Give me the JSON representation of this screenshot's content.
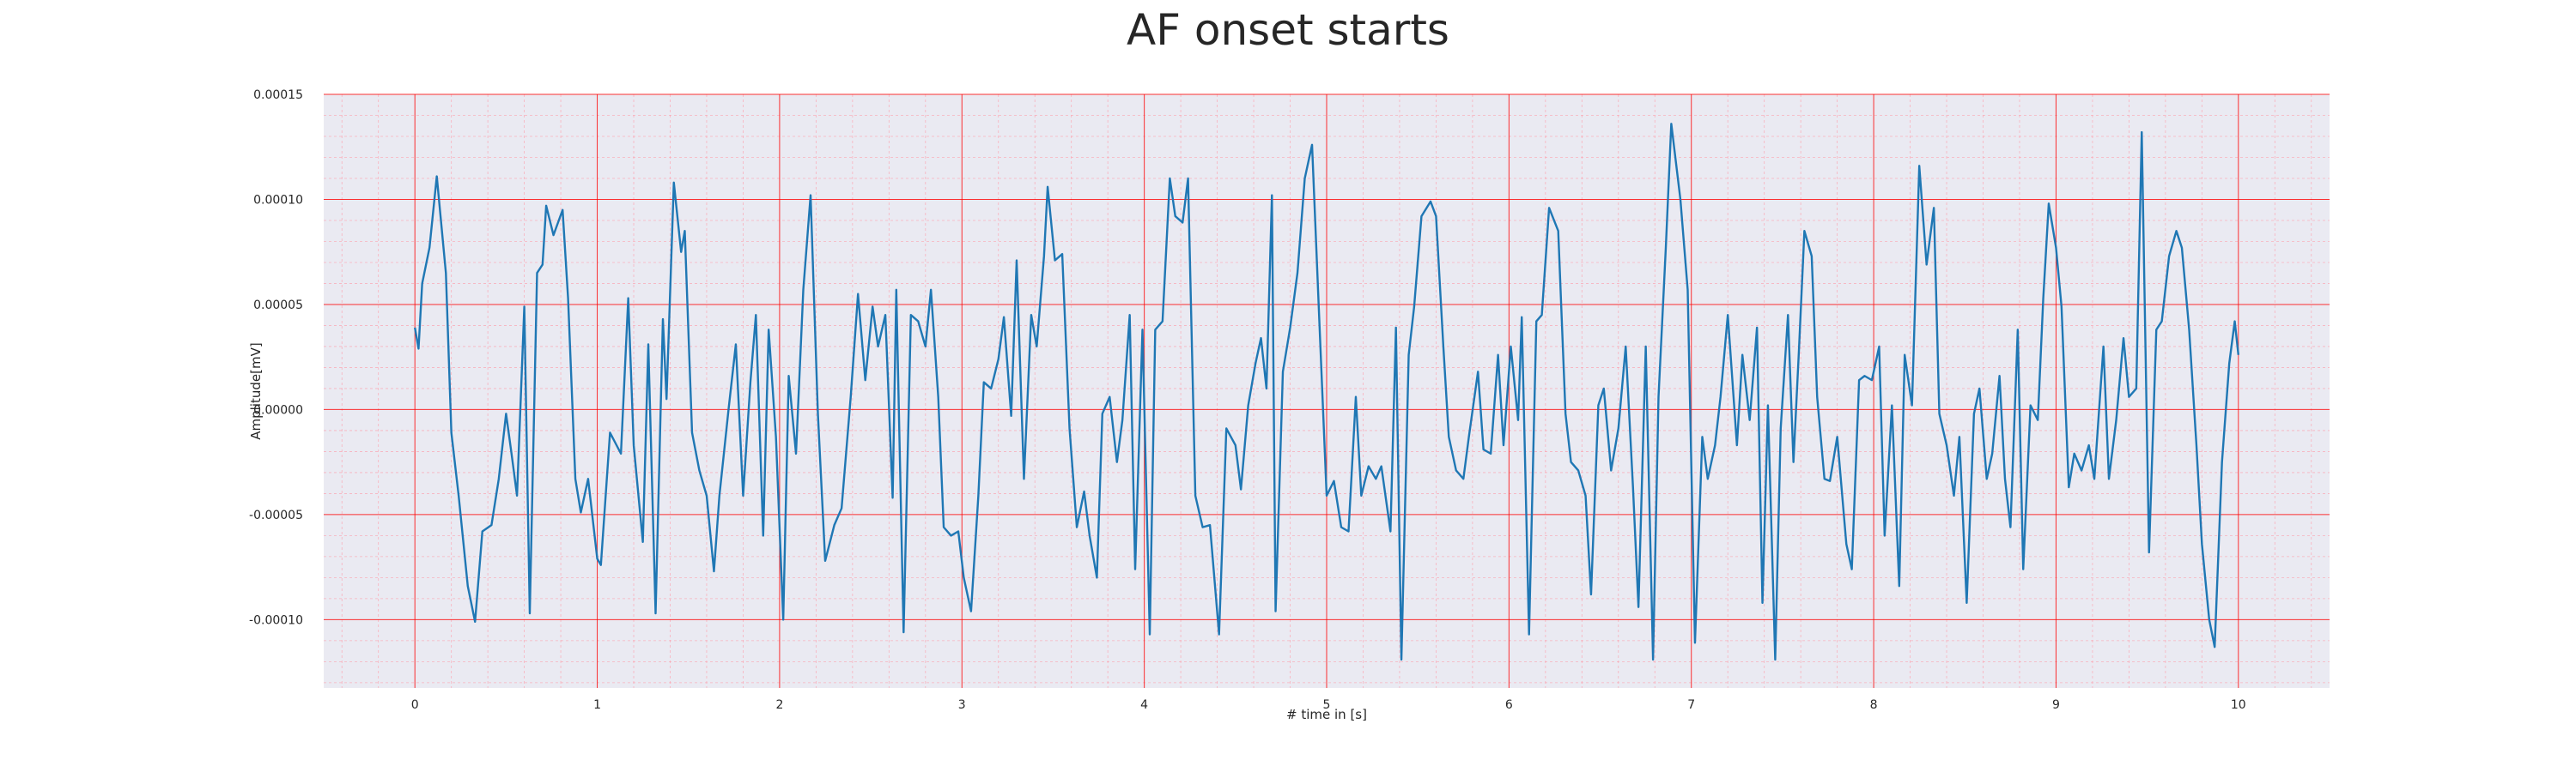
{
  "chart_data": {
    "type": "line",
    "title": "AF onset starts",
    "xlabel": "# time in [s]",
    "ylabel": "Amplitude[mV]",
    "xlim": [
      -0.5,
      10.5
    ],
    "ylim": [
      -0.0001325,
      0.00015
    ],
    "xticks": [
      0,
      1,
      2,
      3,
      4,
      5,
      6,
      7,
      8,
      9,
      10
    ],
    "yticks": [
      {
        "value": -0.0001,
        "label": "-0.00010"
      },
      {
        "value": -5e-05,
        "label": "-0.00005"
      },
      {
        "value": 0,
        "label": "0.00000"
      },
      {
        "value": 5e-05,
        "label": "0.00005"
      },
      {
        "value": 0.0001,
        "label": "0.00010"
      },
      {
        "value": 0.00015,
        "label": "0.00015"
      }
    ],
    "grid": true,
    "grid_color": "#ff0000",
    "minor_grid": true,
    "minor_divisions": 5,
    "background": "#eaeaf2",
    "color": "#1f77b4",
    "x": [
      0,
      0.02,
      0.04,
      0.08,
      0.12,
      0.17,
      0.2,
      0.24,
      0.29,
      0.33,
      0.37,
      0.42,
      0.46,
      0.5,
      0.53,
      0.56,
      0.6,
      0.63,
      0.67,
      0.7,
      0.72,
      0.76,
      0.81,
      0.84,
      0.88,
      0.91,
      0.95,
      1.0,
      1.02,
      1.07,
      1.1,
      1.13,
      1.17,
      1.2,
      1.25,
      1.28,
      1.32,
      1.36,
      1.38,
      1.42,
      1.46,
      1.48,
      1.52,
      1.56,
      1.6,
      1.64,
      1.67,
      1.72,
      1.76,
      1.8,
      1.84,
      1.87,
      1.91,
      1.94,
      1.98,
      2.02,
      2.05,
      2.09,
      2.13,
      2.17,
      2.21,
      2.25,
      2.3,
      2.34,
      2.39,
      2.43,
      2.47,
      2.51,
      2.54,
      2.58,
      2.62,
      2.64,
      2.68,
      2.72,
      2.76,
      2.8,
      2.83,
      2.87,
      2.9,
      2.94,
      2.98,
      3.01,
      3.05,
      3.09,
      3.12,
      3.16,
      3.2,
      3.23,
      3.27,
      3.3,
      3.34,
      3.38,
      3.41,
      3.45,
      3.47,
      3.51,
      3.55,
      3.59,
      3.63,
      3.67,
      3.7,
      3.74,
      3.77,
      3.81,
      3.85,
      3.88,
      3.92,
      3.95,
      3.99,
      4.03,
      4.06,
      4.1,
      4.14,
      4.17,
      4.21,
      4.24,
      4.28,
      4.32,
      4.36,
      4.41,
      4.45,
      4.5,
      4.53,
      4.57,
      4.61,
      4.64,
      4.67,
      4.7,
      4.72,
      4.76,
      4.8,
      4.84,
      4.88,
      4.92,
      4.96,
      5.0,
      5.04,
      5.08,
      5.12,
      5.16,
      5.19,
      5.23,
      5.27,
      5.3,
      5.35,
      5.38,
      5.41,
      5.45,
      5.48,
      5.52,
      5.57,
      5.6,
      5.64,
      5.67,
      5.71,
      5.75,
      5.78,
      5.83,
      5.86,
      5.9,
      5.94,
      5.97,
      6.01,
      6.05,
      6.07,
      6.11,
      6.15,
      6.18,
      6.22,
      6.27,
      6.31,
      6.34,
      6.38,
      6.42,
      6.45,
      6.49,
      6.52,
      6.56,
      6.6,
      6.64,
      6.68,
      6.71,
      6.75,
      6.79,
      6.82,
      6.86,
      6.89,
      6.94,
      6.98,
      7.02,
      7.06,
      7.09,
      7.13,
      7.16,
      7.2,
      7.25,
      7.28,
      7.32,
      7.36,
      7.39,
      7.42,
      7.46,
      7.49,
      7.53,
      7.56,
      7.59,
      7.62,
      7.66,
      7.69,
      7.73,
      7.76,
      7.8,
      7.85,
      7.88,
      7.92,
      7.95,
      7.99,
      8.03,
      8.06,
      8.1,
      8.14,
      8.17,
      8.21,
      8.25,
      8.29,
      8.33,
      8.36,
      8.4,
      8.44,
      8.47,
      8.51,
      8.55,
      8.58,
      8.62,
      8.65,
      8.69,
      8.72,
      8.75,
      8.79,
      8.82,
      8.86,
      8.9,
      8.93,
      8.96,
      9.0,
      9.03,
      9.07,
      9.1,
      9.14,
      9.18,
      9.21,
      9.26,
      9.29,
      9.33,
      9.37,
      9.4,
      9.44,
      9.47,
      9.51,
      9.55,
      9.58,
      9.62,
      9.66,
      9.69,
      9.73,
      9.77,
      9.8,
      9.84,
      9.87,
      9.91,
      9.95,
      9.98,
      10.0
    ],
    "values": [
      3.9e-05,
      2.9e-05,
      6e-05,
      7.7e-05,
      0.000111,
      6.5e-05,
      -1.1e-05,
      -4.1e-05,
      -8.4e-05,
      -0.000101,
      -5.8e-05,
      -5.5e-05,
      -3.3e-05,
      -2e-06,
      -2.1e-05,
      -4.1e-05,
      4.9e-05,
      -9.7e-05,
      6.5e-05,
      6.9e-05,
      9.7e-05,
      8.3e-05,
      9.5e-05,
      5.3e-05,
      -3.3e-05,
      -4.9e-05,
      -3.3e-05,
      -7.1e-05,
      -7.4e-05,
      -1.1e-05,
      -1.6e-05,
      -2.1e-05,
      5.3e-05,
      -1.7e-05,
      -6.3e-05,
      3.1e-05,
      -9.7e-05,
      4.3e-05,
      5e-06,
      0.000108,
      7.5e-05,
      8.5e-05,
      -1.1e-05,
      -2.9e-05,
      -4.1e-05,
      -7.7e-05,
      -4.1e-05,
      0,
      3.1e-05,
      -4.1e-05,
      1.3e-05,
      4.5e-05,
      -6e-05,
      3.8e-05,
      -1.3e-05,
      -0.0001,
      1.6e-05,
      -2.1e-05,
      5.7e-05,
      0.000102,
      -2e-06,
      -7.2e-05,
      -5.5e-05,
      -4.7e-05,
      6e-06,
      5.5e-05,
      1.4e-05,
      4.9e-05,
      3e-05,
      4.5e-05,
      -4.2e-05,
      5.7e-05,
      -0.000106,
      4.5e-05,
      4.2e-05,
      3e-05,
      5.7e-05,
      6e-06,
      -5.6e-05,
      -6e-05,
      -5.8e-05,
      -8e-05,
      -9.6e-05,
      -4.1e-05,
      1.3e-05,
      1e-05,
      2.4e-05,
      4.4e-05,
      -3e-06,
      7.1e-05,
      -3.3e-05,
      4.5e-05,
      3e-05,
      7.3e-05,
      0.000106,
      7.1e-05,
      7.4e-05,
      -9e-06,
      -5.6e-05,
      -3.9e-05,
      -6e-05,
      -8e-05,
      -2e-06,
      6e-06,
      -2.5e-05,
      -5e-06,
      4.5e-05,
      -7.6e-05,
      3.8e-05,
      -0.000107,
      3.8e-05,
      4.2e-05,
      0.00011,
      9.2e-05,
      8.9e-05,
      0.00011,
      -4.1e-05,
      -5.6e-05,
      -5.5e-05,
      -0.000107,
      -9e-06,
      -1.7e-05,
      -3.8e-05,
      2e-06,
      2.2e-05,
      3.4e-05,
      1e-05,
      0.000102,
      -9.6e-05,
      1.8e-05,
      3.9e-05,
      6.5e-05,
      0.00011,
      0.000126,
      4.2e-05,
      -4.1e-05,
      -3.4e-05,
      -5.6e-05,
      -5.8e-05,
      6e-06,
      -4.1e-05,
      -2.7e-05,
      -3.3e-05,
      -2.7e-05,
      -5.8e-05,
      3.9e-05,
      -0.000119,
      2.6e-05,
      4.9e-05,
      9.2e-05,
      9.9e-05,
      9.2e-05,
      3e-05,
      -1.3e-05,
      -2.9e-05,
      -3.3e-05,
      -1.3e-05,
      1.8e-05,
      -1.9e-05,
      -2.1e-05,
      2.6e-05,
      -1.7e-05,
      3e-05,
      -5e-06,
      4.4e-05,
      -0.000107,
      4.2e-05,
      4.5e-05,
      9.6e-05,
      8.5e-05,
      -2e-06,
      -2.5e-05,
      -2.9e-05,
      -4.1e-05,
      -8.8e-05,
      2e-06,
      1e-05,
      -2.9e-05,
      -9e-06,
      3e-05,
      -3.7e-05,
      -9.4e-05,
      3e-05,
      -0.000119,
      6e-06,
      7.7e-05,
      0.000136,
      0.0001,
      5.7e-05,
      -0.000111,
      -1.3e-05,
      -3.3e-05,
      -1.7e-05,
      6e-06,
      4.5e-05,
      -1.7e-05,
      2.6e-05,
      -5e-06,
      3.9e-05,
      -9.2e-05,
      2e-06,
      -0.000119,
      -9e-06,
      4.5e-05,
      -2.5e-05,
      2.8e-05,
      8.5e-05,
      7.3e-05,
      6e-06,
      -3.3e-05,
      -3.4e-05,
      -1.3e-05,
      -6.4e-05,
      -7.6e-05,
      1.4e-05,
      1.6e-05,
      1.4e-05,
      3e-05,
      -6e-05,
      2e-06,
      -8.4e-05,
      2.6e-05,
      2e-06,
      0.000116,
      6.9e-05,
      9.6e-05,
      -2e-06,
      -1.7e-05,
      -4.1e-05,
      -1.3e-05,
      -9.2e-05,
      -2e-06,
      1e-05,
      -3.3e-05,
      -2.1e-05,
      1.6e-05,
      -3.3e-05,
      -5.6e-05,
      3.8e-05,
      -7.6e-05,
      2e-06,
      -5e-06,
      5.3e-05,
      9.8e-05,
      7.7e-05,
      4.9e-05,
      -3.7e-05,
      -2.1e-05,
      -2.9e-05,
      -1.7e-05,
      -3.3e-05,
      3e-05,
      -3.3e-05,
      -5e-06,
      3.4e-05,
      6e-06,
      1e-05,
      0.000132,
      -6.8e-05,
      3.8e-05,
      4.2e-05,
      7.3e-05,
      8.5e-05,
      7.7e-05,
      3.8e-05,
      -1.7e-05,
      -6.4e-05,
      -0.0001,
      -0.000113,
      -2.5e-05,
      2.2e-05,
      4.2e-05,
      2.6e-05
    ]
  }
}
